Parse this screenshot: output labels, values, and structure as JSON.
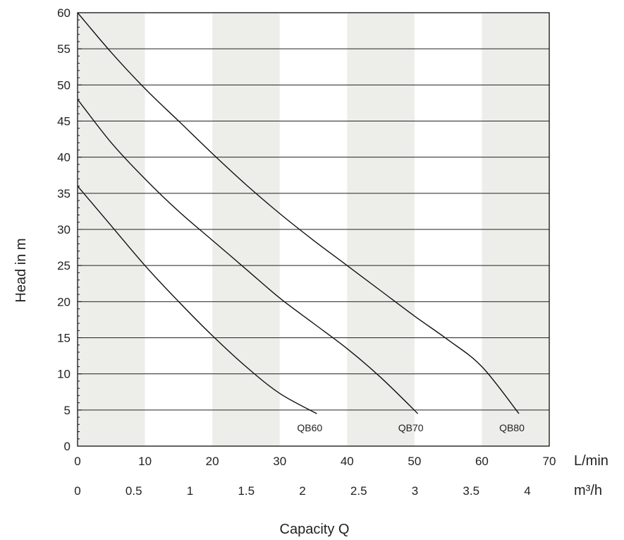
{
  "chart_data": {
    "type": "line",
    "title": "",
    "xlabel": "Capacity Q",
    "ylabel": "Head in m",
    "x_units": [
      "L/min",
      "m³/h"
    ],
    "xlim": [
      0,
      70
    ],
    "ylim": [
      0,
      60
    ],
    "x_ticks_lmin": [
      "0",
      "10",
      "20",
      "30",
      "40",
      "50",
      "60",
      "70"
    ],
    "x_ticks_m3h": [
      "0",
      "0.5",
      "1",
      "1.5",
      "2",
      "2.5",
      "3",
      "3.5",
      "4"
    ],
    "x_ticks_m3h_values": [
      0,
      0.5,
      1,
      1.5,
      2,
      2.5,
      3,
      3.5,
      4
    ],
    "y_ticks": [
      "0",
      "5",
      "10",
      "15",
      "20",
      "25",
      "30",
      "35",
      "40",
      "45",
      "50",
      "55",
      "60"
    ],
    "grid": "horizontal lines every 5 m; alternating gray column bands every 10 L/min",
    "series": [
      {
        "name": "QB60",
        "x": [
          0,
          5,
          10,
          15,
          20,
          25,
          30,
          35.5
        ],
        "y": [
          36,
          30.5,
          25,
          20,
          15.3,
          11,
          7.3,
          4.5
        ]
      },
      {
        "name": "QB70",
        "x": [
          0,
          5,
          10,
          15,
          20,
          25,
          30,
          35,
          40,
          45,
          50.5
        ],
        "y": [
          48,
          42,
          37,
          32.5,
          28.5,
          24.5,
          20.5,
          17,
          13.5,
          9.5,
          4.5
        ]
      },
      {
        "name": "QB80",
        "x": [
          0,
          5,
          10,
          15,
          20,
          25,
          30,
          35,
          40,
          45,
          50,
          55,
          60,
          65.5
        ],
        "y": [
          60,
          54.5,
          49.5,
          45,
          40.5,
          36.2,
          32.2,
          28.5,
          25,
          21.5,
          18,
          14.7,
          11,
          4.5
        ]
      }
    ],
    "colors": {
      "curve": "#111111",
      "band": "#ededea",
      "grid": "#222222"
    }
  }
}
